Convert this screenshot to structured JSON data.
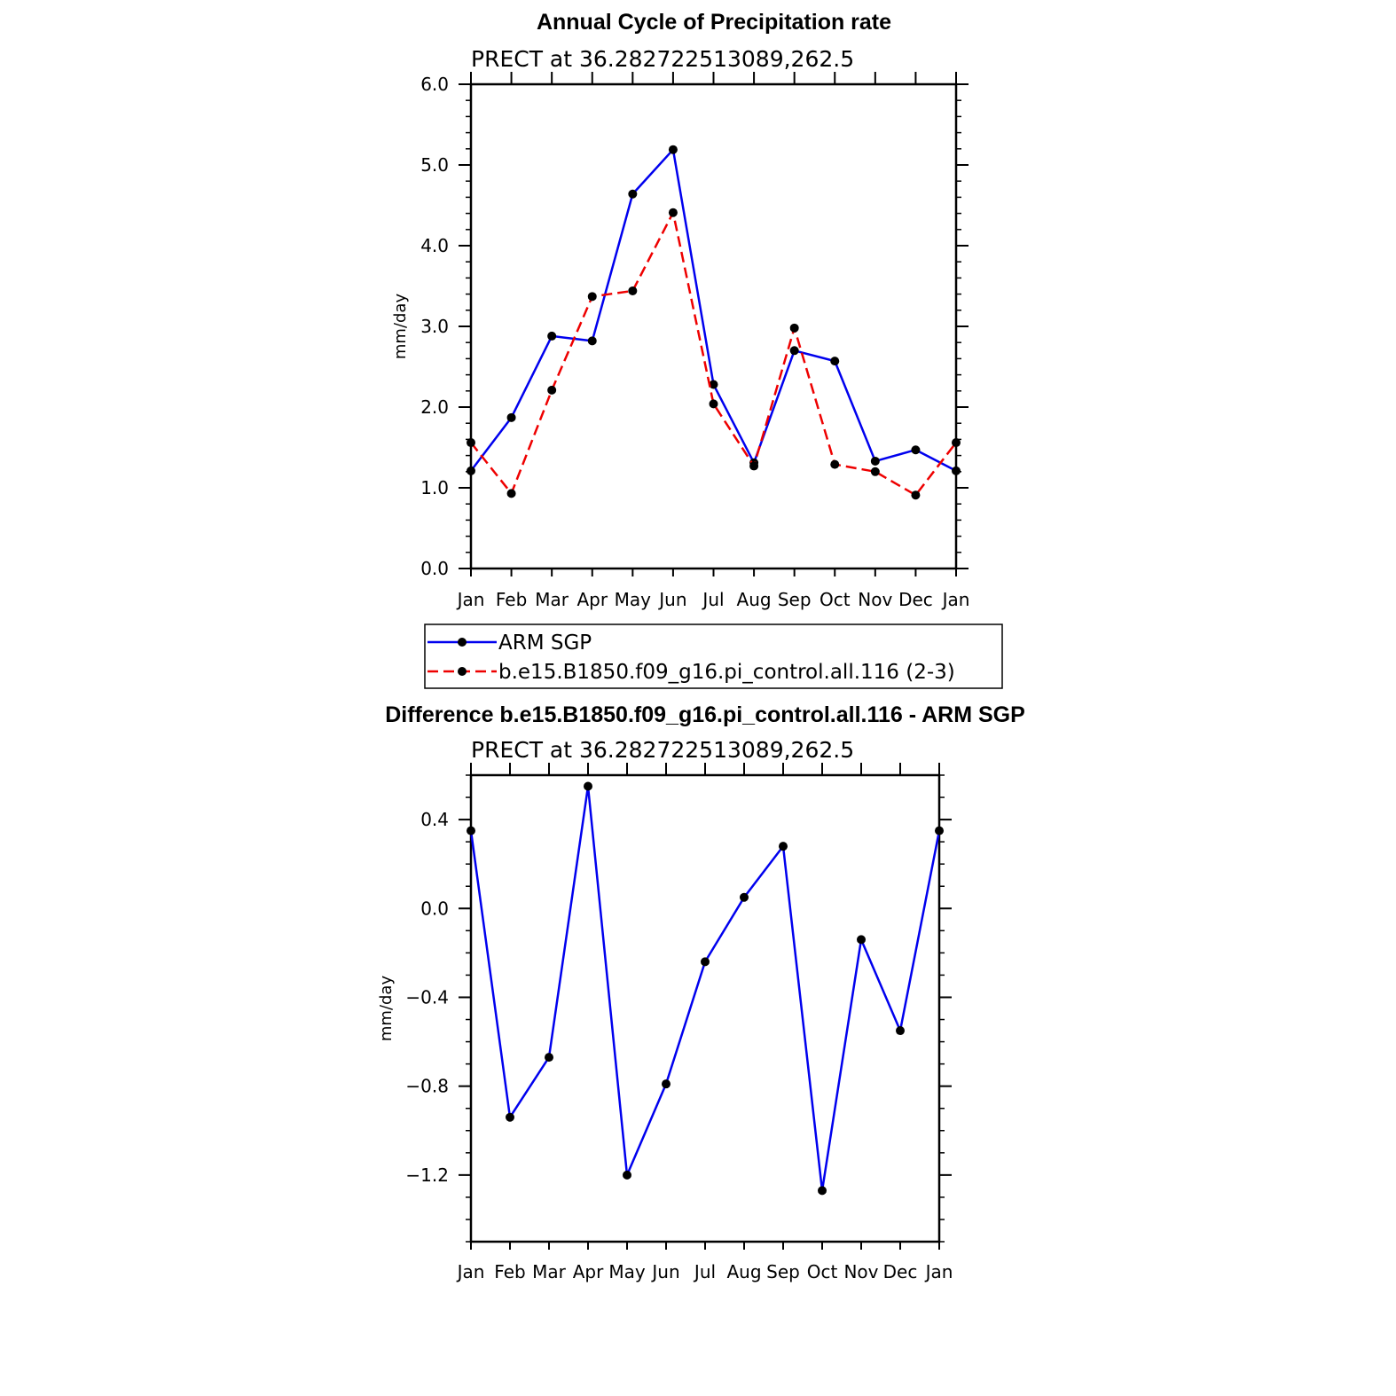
{
  "chart_data": [
    {
      "type": "line",
      "title": "Annual Cycle of Precipitation rate",
      "subtitle": "PRECT at 36.282722513089,262.5",
      "ylabel": "mm/day",
      "xlabel": "",
      "ylim": [
        0,
        6
      ],
      "yticks": [
        0,
        1,
        2,
        3,
        4,
        5,
        6
      ],
      "ytick_labels": [
        "0.0",
        "1.0",
        "2.0",
        "3.0",
        "4.0",
        "5.0",
        "6.0"
      ],
      "categories": [
        "Jan",
        "Feb",
        "Mar",
        "Apr",
        "May",
        "Jun",
        "Jul",
        "Aug",
        "Sep",
        "Oct",
        "Nov",
        "Dec",
        "Jan"
      ],
      "grid": false,
      "legend_position": "bottom",
      "series": [
        {
          "name": "ARM SGP",
          "color": "#0000ee",
          "dash": "solid",
          "values": [
            1.21,
            1.87,
            2.88,
            2.82,
            4.64,
            5.19,
            2.28,
            1.31,
            2.7,
            2.57,
            1.33,
            1.47,
            1.21
          ]
        },
        {
          "name": "b.e15.B1850.f09_g16.pi_control.all.116 (2-3)",
          "color": "#ee0000",
          "dash": "dashed",
          "values": [
            1.56,
            0.93,
            2.21,
            3.37,
            3.44,
            4.41,
            2.04,
            1.27,
            2.98,
            1.29,
            1.2,
            0.91,
            1.56
          ]
        }
      ]
    },
    {
      "type": "line",
      "title": "Difference b.e15.B1850.f09_g16.pi_control.all.116 - ARM SGP",
      "subtitle": "PRECT at 36.282722513089,262.5",
      "ylabel": "mm/day",
      "xlabel": "",
      "ylim": [
        -1.5,
        0.6
      ],
      "yticks": [
        -1.2,
        -0.8,
        -0.4,
        0.0,
        0.4
      ],
      "ytick_labels": [
        "−1.2",
        "−0.8",
        "−0.4",
        "0.0",
        "0.4"
      ],
      "categories": [
        "Jan",
        "Feb",
        "Mar",
        "Apr",
        "May",
        "Jun",
        "Jul",
        "Aug",
        "Sep",
        "Oct",
        "Nov",
        "Dec",
        "Jan"
      ],
      "grid": false,
      "series": [
        {
          "color": "#0000ee",
          "dash": "solid",
          "values": [
            0.35,
            -0.94,
            -0.67,
            0.55,
            -1.2,
            -0.79,
            -0.24,
            0.05,
            0.28,
            -1.27,
            -0.14,
            -0.55,
            0.35
          ]
        }
      ]
    }
  ]
}
